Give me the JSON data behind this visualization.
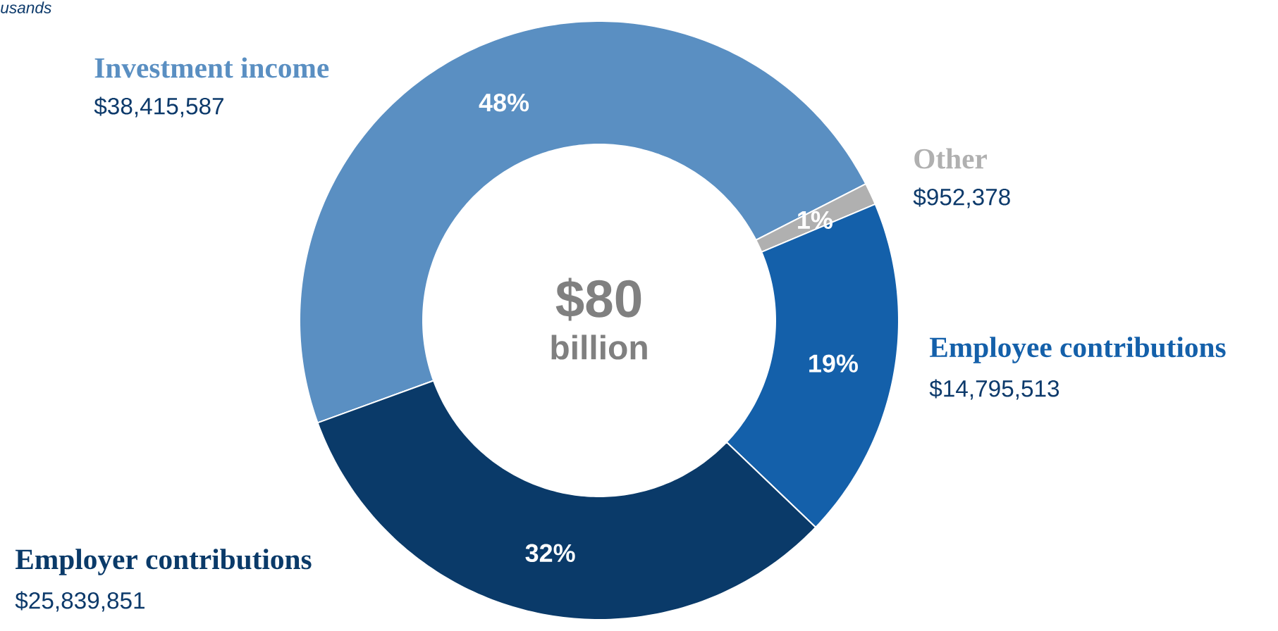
{
  "chart_data": {
    "type": "donut",
    "title": "$80",
    "subtitle": "billion",
    "categories": [
      "Investment income",
      "Other",
      "Employee contributions",
      "Employer contributions"
    ],
    "values": [
      38415587,
      952378,
      14795513,
      25839851
    ],
    "colors": [
      "#5a8fc2",
      "#b0b0b0",
      "#1460aa",
      "#0a3a69"
    ],
    "value_labels": [
      "$38,415,587",
      "$952,378",
      "$14,795,513",
      "$25,839,851"
    ],
    "annotations": [
      "usands",
      "48%",
      "1%",
      "19%",
      "32%"
    ]
  }
}
